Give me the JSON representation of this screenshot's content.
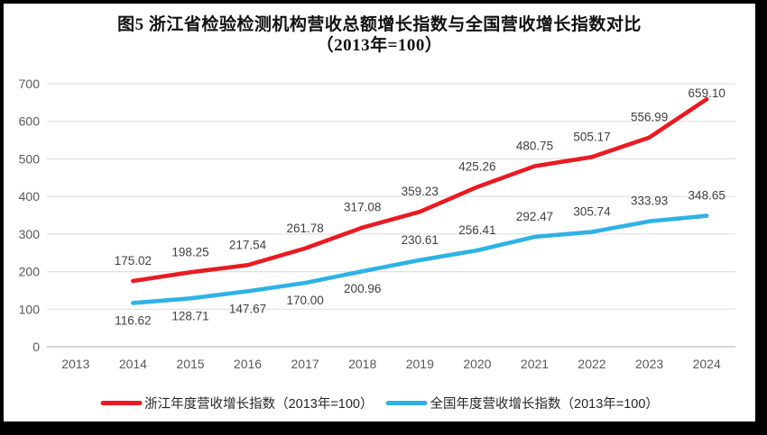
{
  "window": {
    "border_color": "#000000",
    "background": "#ffffff"
  },
  "chart_data": {
    "type": "line",
    "title_line1": "图5  浙江省检验检测机构营收总额增长指数与全国营收增长指数对比",
    "title_line2": "（2013年=100）",
    "categories": [
      "2013",
      "2014",
      "2015",
      "2016",
      "2017",
      "2018",
      "2019",
      "2020",
      "2021",
      "2022",
      "2023",
      "2024"
    ],
    "y_axis": {
      "min": 0,
      "max": 700,
      "step": 100,
      "ticks": [
        "0",
        "100",
        "200",
        "300",
        "400",
        "500",
        "600",
        "700"
      ]
    },
    "grid": true,
    "legend_position": "bottom",
    "colors": {
      "zhejiang_red": "#e81b23",
      "national_blue": "#2eb2e6",
      "gridline": "#e0e0e0",
      "axis_text": "#595959",
      "label_text": "#404040"
    },
    "series": [
      {
        "name": "浙江年度营收增长指数（2013年=100）",
        "color": "#e81b23",
        "values": [
          null,
          175.02,
          198.25,
          217.54,
          261.78,
          317.08,
          359.23,
          425.26,
          480.75,
          505.17,
          556.99,
          659.1
        ],
        "labels": [
          null,
          "175.02",
          "198.25",
          "217.54",
          "261.78",
          "317.08",
          "359.23",
          "425.26",
          "480.75",
          "505.17",
          "556.99",
          "659.10"
        ],
        "label_side": [
          null,
          "above",
          "above",
          "above",
          "above",
          "above",
          "above",
          "above",
          "above",
          "above",
          "above",
          "above"
        ]
      },
      {
        "name": "全国年度营收增长指数（2013年=100）",
        "color": "#2eb2e6",
        "values": [
          null,
          116.62,
          128.71,
          147.67,
          170.0,
          200.96,
          230.61,
          256.41,
          292.47,
          305.74,
          333.93,
          348.65
        ],
        "labels": [
          null,
          "116.62",
          "128.71",
          "147.67",
          "170.00",
          "200.96",
          "230.61",
          "256.41",
          "292.47",
          "305.74",
          "333.93",
          "348.65"
        ],
        "label_side": [
          null,
          "below",
          "below",
          "below",
          "below",
          "below",
          "above",
          "above",
          "above",
          "above",
          "above",
          "above"
        ]
      }
    ]
  }
}
